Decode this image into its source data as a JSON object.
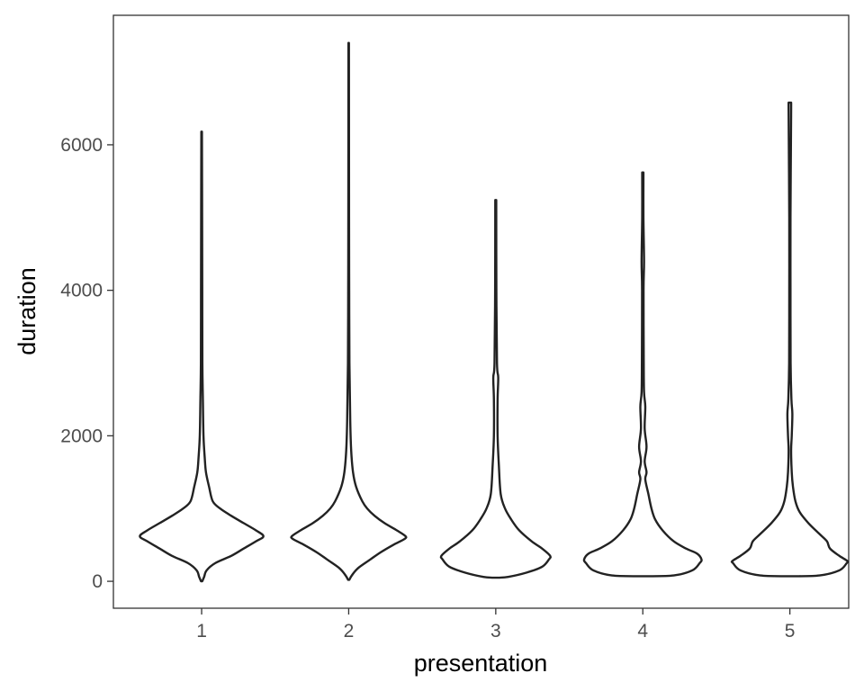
{
  "chart_data": {
    "type": "violin",
    "xlabel": "presentation",
    "ylabel": "duration",
    "categories": [
      "1",
      "2",
      "3",
      "4",
      "5"
    ],
    "y_ticks": [
      0,
      2000,
      4000,
      6000
    ],
    "y_tick_labels": [
      "0",
      "2000",
      "4000",
      "6000"
    ],
    "ylim": [
      -370,
      7780
    ],
    "xlim": [
      0.4,
      5.4
    ],
    "grid": false,
    "legend": "none",
    "outline_color": "#222222",
    "violins": [
      {
        "category": "1",
        "min": 0,
        "max": 6180,
        "profile": [
          [
            0,
            0.01
          ],
          [
            60,
            0.04
          ],
          [
            150,
            0.08
          ],
          [
            250,
            0.22
          ],
          [
            350,
            0.48
          ],
          [
            450,
            0.68
          ],
          [
            550,
            0.88
          ],
          [
            620,
            1.0
          ],
          [
            700,
            0.88
          ],
          [
            800,
            0.68
          ],
          [
            900,
            0.48
          ],
          [
            1000,
            0.3
          ],
          [
            1100,
            0.18
          ],
          [
            1300,
            0.12
          ],
          [
            1500,
            0.07
          ],
          [
            1700,
            0.05
          ],
          [
            2000,
            0.03
          ],
          [
            2500,
            0.02
          ],
          [
            3000,
            0.012
          ],
          [
            4000,
            0.01
          ],
          [
            5000,
            0.008
          ],
          [
            6180,
            0.005
          ]
        ]
      },
      {
        "category": "2",
        "min": 20,
        "max": 7400,
        "profile": [
          [
            20,
            0.01
          ],
          [
            80,
            0.05
          ],
          [
            180,
            0.15
          ],
          [
            300,
            0.35
          ],
          [
            400,
            0.52
          ],
          [
            500,
            0.72
          ],
          [
            580,
            0.9
          ],
          [
            620,
            0.92
          ],
          [
            700,
            0.78
          ],
          [
            800,
            0.58
          ],
          [
            900,
            0.42
          ],
          [
            1000,
            0.3
          ],
          [
            1100,
            0.22
          ],
          [
            1300,
            0.12
          ],
          [
            1500,
            0.07
          ],
          [
            1800,
            0.04
          ],
          [
            2200,
            0.025
          ],
          [
            3000,
            0.012
          ],
          [
            4000,
            0.008
          ],
          [
            5000,
            0.006
          ],
          [
            7400,
            0.004
          ]
        ]
      },
      {
        "category": "3",
        "min": 50,
        "max": 5240,
        "profile": [
          [
            50,
            0.06
          ],
          [
            60,
            0.2
          ],
          [
            120,
            0.5
          ],
          [
            200,
            0.75
          ],
          [
            300,
            0.86
          ],
          [
            350,
            0.88
          ],
          [
            450,
            0.75
          ],
          [
            550,
            0.58
          ],
          [
            700,
            0.38
          ],
          [
            850,
            0.25
          ],
          [
            1000,
            0.15
          ],
          [
            1200,
            0.08
          ],
          [
            1600,
            0.05
          ],
          [
            2000,
            0.03
          ],
          [
            2500,
            0.03
          ],
          [
            2800,
            0.04
          ],
          [
            3000,
            0.02
          ],
          [
            4000,
            0.01
          ],
          [
            5240,
            0.008
          ]
        ]
      },
      {
        "category": "4",
        "min": 70,
        "max": 5620,
        "profile": [
          [
            70,
            0.06
          ],
          [
            80,
            0.5
          ],
          [
            150,
            0.8
          ],
          [
            250,
            0.92
          ],
          [
            300,
            0.95
          ],
          [
            380,
            0.88
          ],
          [
            450,
            0.7
          ],
          [
            550,
            0.5
          ],
          [
            700,
            0.32
          ],
          [
            850,
            0.2
          ],
          [
            1000,
            0.14
          ],
          [
            1200,
            0.09
          ],
          [
            1400,
            0.04
          ],
          [
            1500,
            0.06
          ],
          [
            1650,
            0.03
          ],
          [
            1850,
            0.06
          ],
          [
            2100,
            0.03
          ],
          [
            2400,
            0.04
          ],
          [
            2600,
            0.02
          ],
          [
            3000,
            0.015
          ],
          [
            4000,
            0.012
          ],
          [
            4400,
            0.02
          ],
          [
            5000,
            0.01
          ],
          [
            5620,
            0.01
          ]
        ]
      },
      {
        "category": "5",
        "min": 70,
        "max": 6580,
        "profile": [
          [
            70,
            0.05
          ],
          [
            80,
            0.48
          ],
          [
            150,
            0.8
          ],
          [
            250,
            0.92
          ],
          [
            280,
            0.93
          ],
          [
            350,
            0.8
          ],
          [
            450,
            0.65
          ],
          [
            550,
            0.6
          ],
          [
            650,
            0.48
          ],
          [
            800,
            0.3
          ],
          [
            950,
            0.16
          ],
          [
            1100,
            0.09
          ],
          [
            1300,
            0.05
          ],
          [
            1500,
            0.03
          ],
          [
            1800,
            0.02
          ],
          [
            2000,
            0.03
          ],
          [
            2300,
            0.04
          ],
          [
            2500,
            0.025
          ],
          [
            3000,
            0.012
          ],
          [
            4000,
            0.01
          ],
          [
            5000,
            0.01
          ],
          [
            6400,
            0.02
          ],
          [
            6580,
            0.02
          ]
        ]
      }
    ]
  }
}
